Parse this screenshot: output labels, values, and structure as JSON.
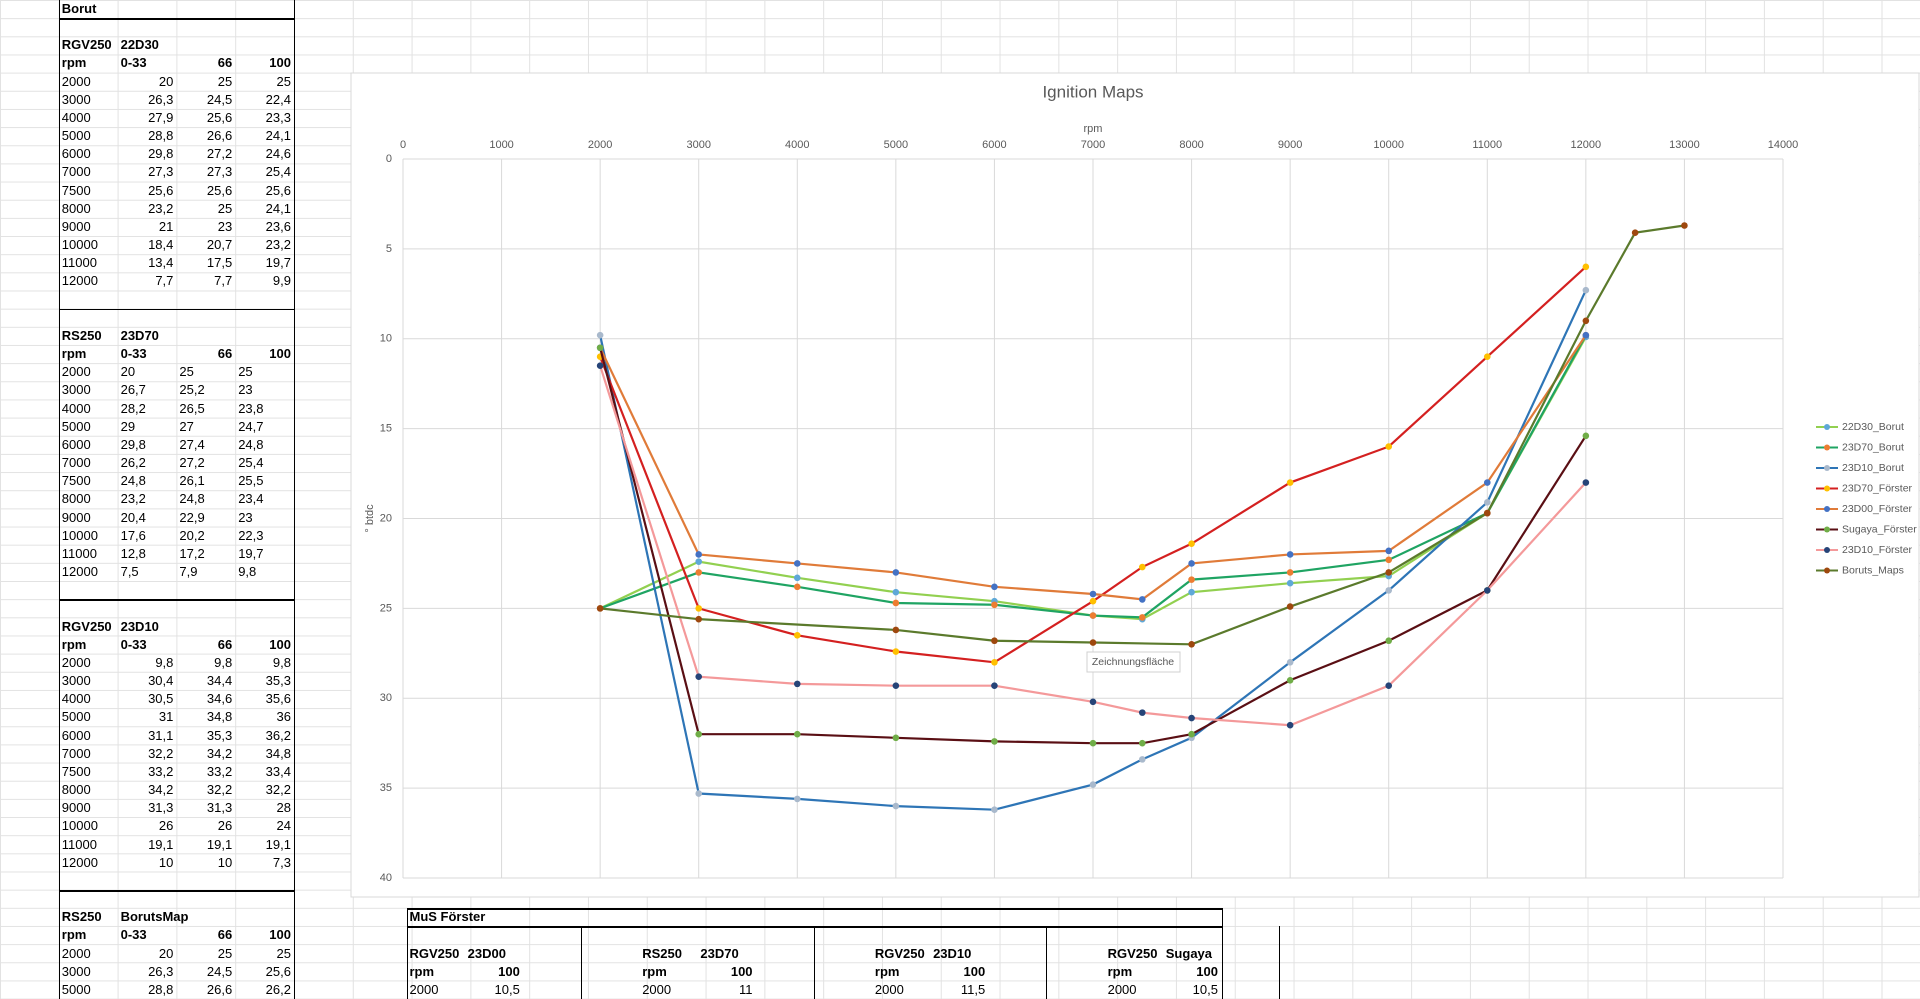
{
  "sheet": {
    "borut": {
      "title": "Borut",
      "tables": [
        {
          "model": "RGV250",
          "map": "22D30",
          "align": "right",
          "header": [
            "rpm",
            "0-33",
            "66",
            "100"
          ],
          "rows": [
            [
              "2000",
              "20",
              "25",
              "25"
            ],
            [
              "3000",
              "26,3",
              "24,5",
              "22,4"
            ],
            [
              "4000",
              "27,9",
              "25,6",
              "23,3"
            ],
            [
              "5000",
              "28,8",
              "26,6",
              "24,1"
            ],
            [
              "6000",
              "29,8",
              "27,2",
              "24,6"
            ],
            [
              "7000",
              "27,3",
              "27,3",
              "25,4"
            ],
            [
              "7500",
              "25,6",
              "25,6",
              "25,6"
            ],
            [
              "8000",
              "23,2",
              "25",
              "24,1"
            ],
            [
              "9000",
              "21",
              "23",
              "23,6"
            ],
            [
              "10000",
              "18,4",
              "20,7",
              "23,2"
            ],
            [
              "11000",
              "13,4",
              "17,5",
              "19,7"
            ],
            [
              "12000",
              "7,7",
              "7,7",
              "9,9"
            ]
          ]
        },
        {
          "model": "RS250",
          "map": "23D70",
          "align": "left",
          "header": [
            "rpm",
            "0-33",
            "66",
            "100"
          ],
          "rows": [
            [
              "2000",
              "20",
              "25",
              "25"
            ],
            [
              "3000",
              "26,7",
              "25,2",
              "23"
            ],
            [
              "4000",
              "28,2",
              "26,5",
              "23,8"
            ],
            [
              "5000",
              "29",
              "27",
              "24,7"
            ],
            [
              "6000",
              "29,8",
              "27,4",
              "24,8"
            ],
            [
              "7000",
              "26,2",
              "27,2",
              "25,4"
            ],
            [
              "7500",
              "24,8",
              "26,1",
              "25,5"
            ],
            [
              "8000",
              "23,2",
              "24,8",
              "23,4"
            ],
            [
              "9000",
              "20,4",
              "22,9",
              "23"
            ],
            [
              "10000",
              "17,6",
              "20,2",
              "22,3"
            ],
            [
              "11000",
              "12,8",
              "17,2",
              "19,7"
            ],
            [
              "12000",
              "7,5",
              "7,9",
              "9,8"
            ]
          ]
        },
        {
          "model": "RGV250",
          "map": "23D10",
          "align": "right",
          "header": [
            "rpm",
            "0-33",
            "66",
            "100"
          ],
          "rows": [
            [
              "2000",
              "9,8",
              "9,8",
              "9,8"
            ],
            [
              "3000",
              "30,4",
              "34,4",
              "35,3"
            ],
            [
              "4000",
              "30,5",
              "34,6",
              "35,6"
            ],
            [
              "5000",
              "31",
              "34,8",
              "36"
            ],
            [
              "6000",
              "31,1",
              "35,3",
              "36,2"
            ],
            [
              "7000",
              "32,2",
              "34,2",
              "34,8"
            ],
            [
              "7500",
              "33,2",
              "33,2",
              "33,4"
            ],
            [
              "8000",
              "34,2",
              "32,2",
              "32,2"
            ],
            [
              "9000",
              "31,3",
              "31,3",
              "28"
            ],
            [
              "10000",
              "26",
              "26",
              "24"
            ],
            [
              "11000",
              "19,1",
              "19,1",
              "19,1"
            ],
            [
              "12000",
              "10",
              "10",
              "7,3"
            ]
          ]
        },
        {
          "model": "RS250",
          "map": "BorutsMap",
          "align": "right",
          "header": [
            "rpm",
            "0-33",
            "66",
            "100"
          ],
          "rows": [
            [
              "2000",
              "20",
              "25",
              "25"
            ],
            [
              "3000",
              "26,3",
              "24,5",
              "25,6"
            ],
            [
              "5000",
              "28,8",
              "26,6",
              "26,2"
            ]
          ]
        }
      ]
    },
    "muster": {
      "title": "MuS Förster",
      "tables": [
        {
          "model": "RGV250",
          "map": "23D00",
          "header": [
            "rpm",
            "100"
          ],
          "rows": [
            [
              "2000",
              "10,5"
            ]
          ]
        },
        {
          "model": "RS250",
          "map": "23D70",
          "header": [
            "rpm",
            "100"
          ],
          "rows": [
            [
              "2000",
              "11"
            ]
          ]
        },
        {
          "model": "RGV250",
          "map": "23D10",
          "header": [
            "rpm",
            "100"
          ],
          "rows": [
            [
              "2000",
              "11,5"
            ]
          ]
        },
        {
          "model": "RGV250",
          "map": "Sugaya",
          "header": [
            "rpm",
            "100"
          ],
          "rows": [
            [
              "2000",
              "10,5"
            ]
          ]
        }
      ]
    }
  },
  "chart_data": {
    "type": "line",
    "title": "Ignition Maps",
    "x_label": "rpm",
    "y_label": "° btdc",
    "annotation": "Zeichnungsfläche",
    "x_axis_position": "top",
    "y_reversed": true,
    "grid": true,
    "legend": "right",
    "xlim": [
      0,
      14000
    ],
    "xticks": [
      0,
      1000,
      2000,
      3000,
      4000,
      5000,
      6000,
      7000,
      8000,
      9000,
      10000,
      11000,
      12000,
      13000,
      14000
    ],
    "ylim": [
      0,
      40
    ],
    "yticks": [
      0,
      5,
      10,
      15,
      20,
      25,
      30,
      35,
      40
    ],
    "series": [
      {
        "name": "22D30_Borut",
        "color": "#92d050",
        "marker_color": "#5fa8d8",
        "x": [
          2000,
          3000,
          4000,
          5000,
          6000,
          7000,
          7500,
          8000,
          9000,
          10000,
          11000,
          12000
        ],
        "values": [
          25,
          22.4,
          23.3,
          24.1,
          24.6,
          25.4,
          25.6,
          24.1,
          23.6,
          23.2,
          19.7,
          9.9
        ]
      },
      {
        "name": "23D70_Borut",
        "color": "#1fa463",
        "marker_color": "#ed7d31",
        "x": [
          2000,
          3000,
          4000,
          5000,
          6000,
          7000,
          7500,
          8000,
          9000,
          10000,
          11000,
          12000
        ],
        "values": [
          25,
          23,
          23.8,
          24.7,
          24.8,
          25.4,
          25.5,
          23.4,
          23,
          22.3,
          19.7,
          9.8
        ]
      },
      {
        "name": "23D10_Borut",
        "color": "#2e75b6",
        "marker_color": "#a9b9cc",
        "x": [
          2000,
          3000,
          4000,
          5000,
          6000,
          7000,
          7500,
          8000,
          9000,
          10000,
          11000,
          12000
        ],
        "values": [
          9.8,
          35.3,
          35.6,
          36,
          36.2,
          34.8,
          33.4,
          32.2,
          28,
          24,
          19.1,
          7.3
        ]
      },
      {
        "name": "23D70_Förster",
        "color": "#d42020",
        "marker_color": "#ffc000",
        "x": [
          2000,
          3000,
          4000,
          5000,
          6000,
          7000,
          7500,
          8000,
          9000,
          10000,
          11000,
          12000
        ],
        "values": [
          11,
          25,
          26.5,
          27.4,
          28,
          24.6,
          22.7,
          21.4,
          18,
          16,
          11,
          6
        ]
      },
      {
        "name": "23D00_Förster",
        "color": "#e07b39",
        "marker_color": "#4472c4",
        "x": [
          2000,
          3000,
          4000,
          5000,
          6000,
          7000,
          7500,
          8000,
          9000,
          10000,
          11000,
          12000
        ],
        "values": [
          10.5,
          22,
          22.5,
          23,
          23.8,
          24.2,
          24.5,
          22.5,
          22,
          21.8,
          18,
          9.8
        ]
      },
      {
        "name": "Sugaya_Förster",
        "color": "#5a0f14",
        "marker_color": "#70ad47",
        "x": [
          2000,
          3000,
          4000,
          5000,
          6000,
          7000,
          7500,
          8000,
          9000,
          10000,
          11000,
          12000
        ],
        "values": [
          10.5,
          32,
          32,
          32.2,
          32.4,
          32.5,
          32.5,
          32,
          29,
          26.8,
          24,
          15.4
        ]
      },
      {
        "name": "23D10_Förster",
        "color": "#f4999a",
        "marker_color": "#264478",
        "x": [
          2000,
          3000,
          4000,
          5000,
          6000,
          7000,
          7500,
          8000,
          9000,
          10000,
          11000,
          12000
        ],
        "values": [
          11.5,
          28.8,
          29.2,
          29.3,
          29.3,
          30.2,
          30.8,
          31.1,
          31.5,
          29.3,
          24,
          18
        ]
      },
      {
        "name": "Boruts_Maps",
        "color": "#5b7a2c",
        "marker_color": "#9e480e",
        "x": [
          2000,
          3000,
          5000,
          6000,
          7000,
          8000,
          9000,
          10000,
          11000,
          12000,
          12500,
          13000
        ],
        "values": [
          25,
          25.6,
          26.2,
          26.8,
          26.9,
          27,
          24.9,
          23,
          19.7,
          9,
          4.1,
          3.7
        ]
      }
    ]
  }
}
